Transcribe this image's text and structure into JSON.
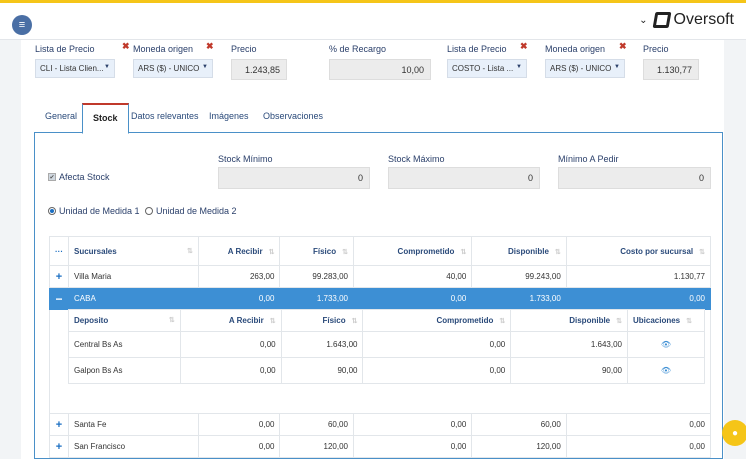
{
  "topbar": {
    "brand": "Oversoft",
    "menu_icon": "hamburger-icon"
  },
  "pricing": [
    {
      "label": "Lista de Precio",
      "value": "CLI - Lista Clien..."
    },
    {
      "label": "Moneda origen",
      "value": "ARS ($) - UNICO"
    },
    {
      "label": "Precio",
      "value": "1.243,85"
    },
    {
      "label": "% de Recargo",
      "value": "10,00"
    },
    {
      "label": "Lista de Precio",
      "value": "COSTO - Lista ..."
    },
    {
      "label": "Moneda origen",
      "value": "ARS ($) - UNICO"
    },
    {
      "label": "Precio",
      "value": "1.130,77"
    }
  ],
  "tabs": [
    "General",
    "Stock",
    "Datos relevantes",
    "Imágenes",
    "Observaciones"
  ],
  "stock": {
    "afecta_label": "Afecta Stock",
    "min_label": "Stock Mínimo",
    "min_value": "0",
    "max_label": "Stock Máximo",
    "max_value": "0",
    "pedir_label": "Mínimo A Pedir",
    "pedir_value": "0",
    "unidad1": "Unidad de Medida 1",
    "unidad2": "Unidad de Medida 2"
  },
  "main_table": {
    "menu": "···",
    "headers": [
      "Sucursales",
      "A Recibir",
      "Físico",
      "Comprometido",
      "Disponible",
      "Costo por sucursal"
    ],
    "rows": [
      {
        "toggle": "+",
        "cells": [
          "Villa Maria",
          "263,00",
          "99.283,00",
          "40,00",
          "99.243,00",
          "1.130,77"
        ]
      },
      {
        "toggle": "−",
        "cells": [
          "CABA",
          "0,00",
          "1.733,00",
          "0,00",
          "1.733,00",
          "0,00"
        ]
      },
      {
        "toggle": "+",
        "cells": [
          "Santa Fe",
          "0,00",
          "60,00",
          "0,00",
          "60,00",
          "0,00"
        ]
      },
      {
        "toggle": "+",
        "cells": [
          "San Francisco",
          "0,00",
          "120,00",
          "0,00",
          "120,00",
          "0,00"
        ]
      }
    ]
  },
  "sub_table": {
    "headers": [
      "Deposito",
      "A Recibir",
      "Físico",
      "Comprometido",
      "Disponible",
      "Ubicaciones"
    ],
    "rows": [
      [
        "Central Bs As",
        "0,00",
        "1.643,00",
        "0,00",
        "1.643,00"
      ],
      [
        "Galpon Bs As",
        "0,00",
        "90,00",
        "0,00",
        "90,00"
      ]
    ]
  },
  "colors": {
    "accent": "#3d8fd4",
    "brand_yellow": "#f5c518",
    "remove": "#c0392b"
  }
}
